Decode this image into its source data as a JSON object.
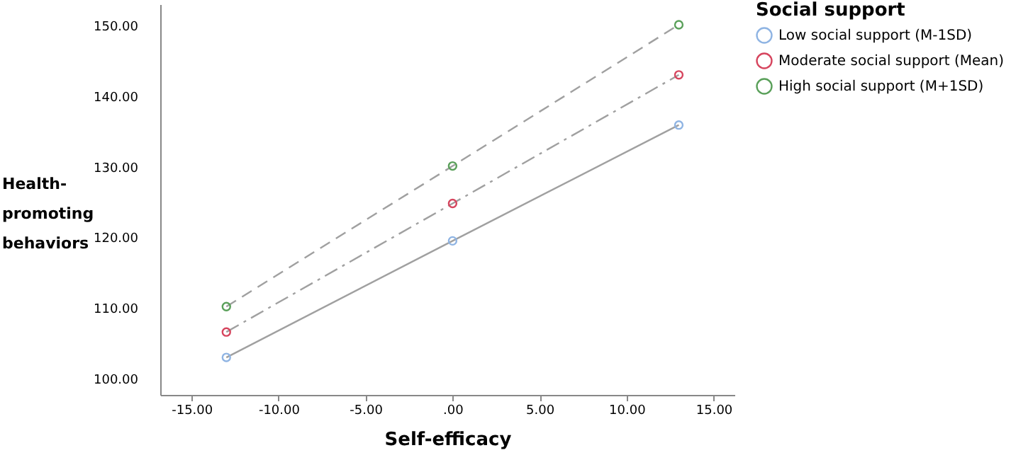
{
  "chart_data": {
    "type": "line",
    "xlabel": "Self-efficacy",
    "ylabel": "Health-\npromoting\nbehaviors",
    "legend_title": "Social support",
    "legend": "top right",
    "grid": false,
    "marker": "circle",
    "x": [
      -13,
      0,
      13
    ],
    "xlim": [
      -16.8,
      16.2
    ],
    "xticks": [
      {
        "value": -15,
        "label": "-15.00"
      },
      {
        "value": -10,
        "label": "-10.00"
      },
      {
        "value": -5,
        "label": "-5.00"
      },
      {
        "value": 0,
        "label": ".00"
      },
      {
        "value": 5,
        "label": "5.00"
      },
      {
        "value": 10,
        "label": "10.00"
      },
      {
        "value": 15,
        "label": "15.00"
      }
    ],
    "ylim": [
      97.7,
      153
    ],
    "yticks": [
      {
        "value": 100,
        "label": "100.00"
      },
      {
        "value": 110,
        "label": "110.00"
      },
      {
        "value": 120,
        "label": "120.00"
      },
      {
        "value": 130,
        "label": "130.00"
      },
      {
        "value": 140,
        "label": "140.00"
      },
      {
        "value": 150,
        "label": "150.00"
      }
    ],
    "series": [
      {
        "name": "Low social support (M-1SD)",
        "color": "#8fb4e3",
        "line_style": "solid",
        "values": [
          103.0,
          119.5,
          135.9
        ]
      },
      {
        "name": "Moderate social support (Mean)",
        "color": "#d6455e",
        "line_style": "dashdot",
        "values": [
          106.6,
          124.8,
          143.0
        ]
      },
      {
        "name": "High social support (M+1SD)",
        "color": "#5aa05a",
        "line_style": "dashed",
        "values": [
          110.2,
          130.1,
          150.1
        ]
      }
    ]
  }
}
